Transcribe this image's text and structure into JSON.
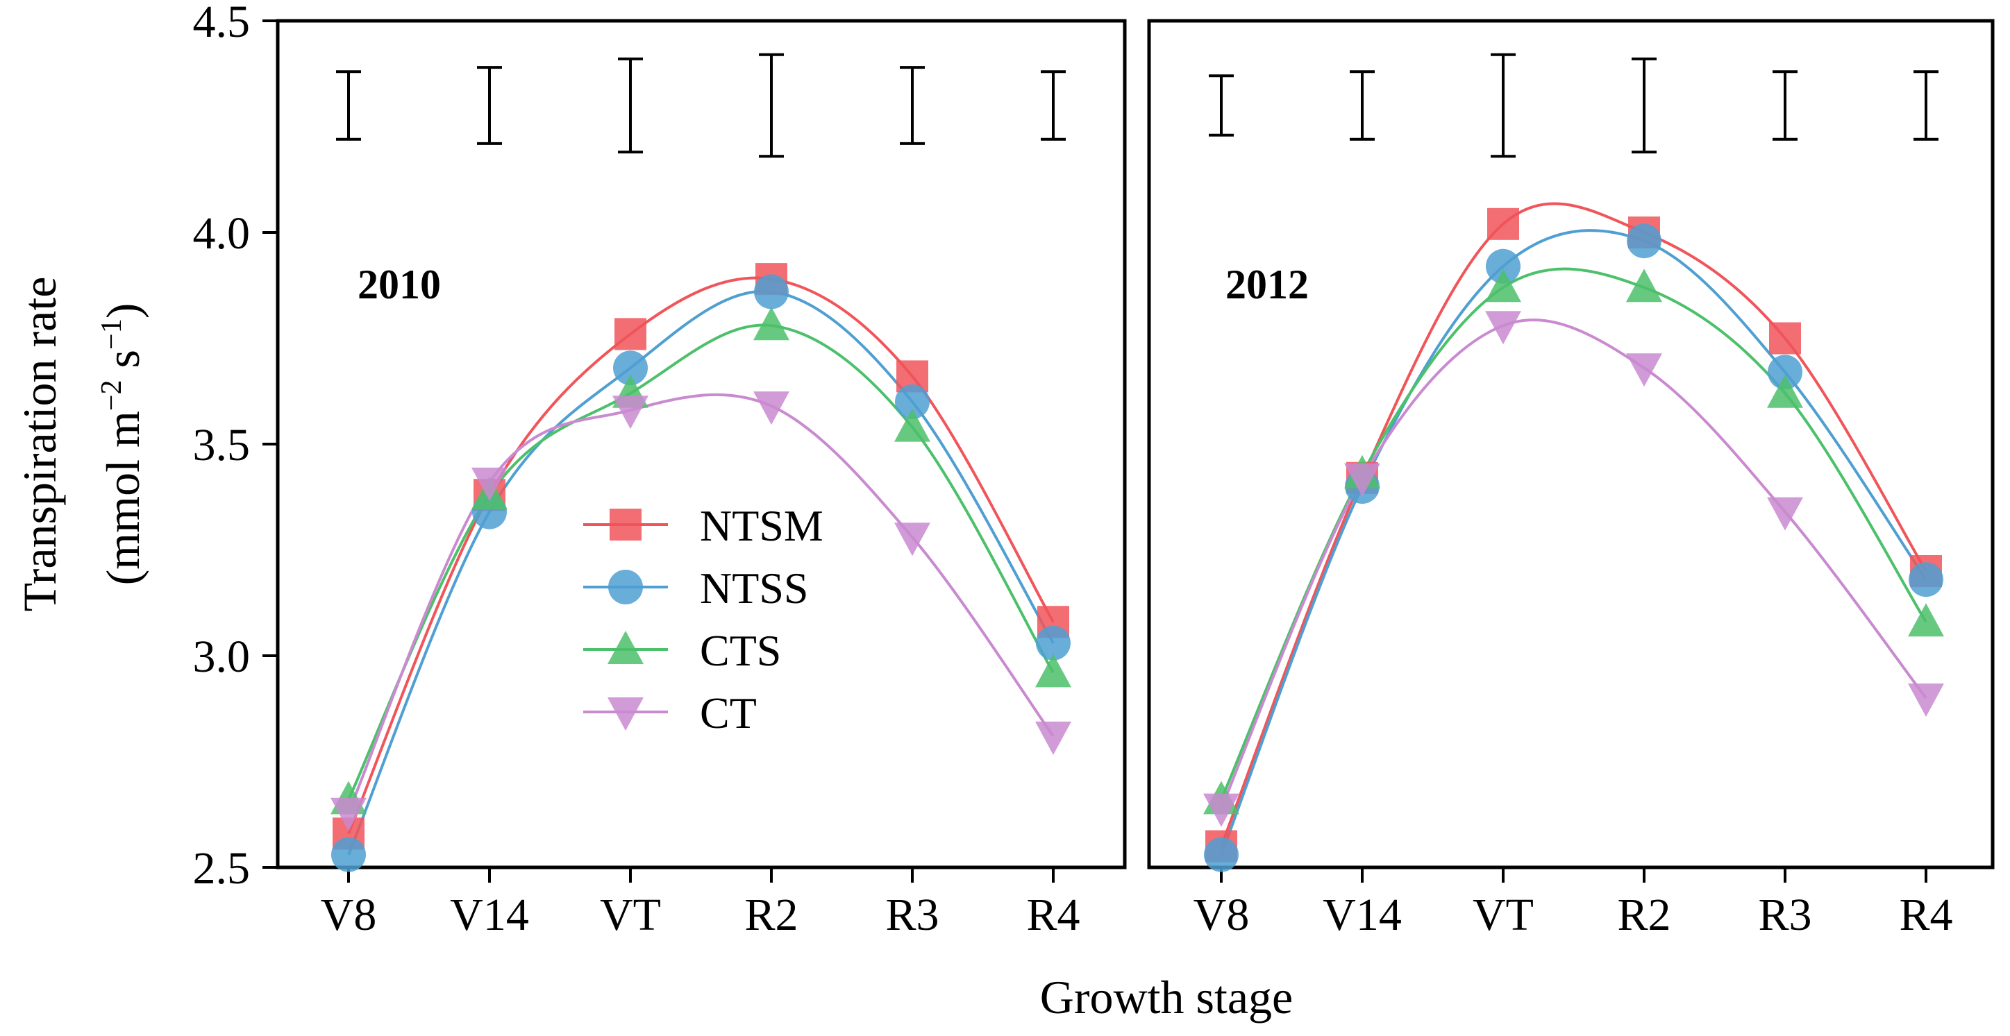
{
  "chart_data": {
    "type": "line",
    "xlabel": "Growth stage",
    "ylabel_line1": "Transpiration rate",
    "ylabel_line2": "(mmol m",
    "ylabel_exp1": "−2",
    "ylabel_mid": " s",
    "ylabel_exp2": "−1",
    "ylabel_end": ")",
    "ylim": [
      2.5,
      4.5
    ],
    "yticks": [
      "2.5",
      "3.0",
      "3.5",
      "4.0",
      "4.5"
    ],
    "categories": [
      "V8",
      "V14",
      "VT",
      "R2",
      "R3",
      "R4"
    ],
    "legend": [
      {
        "name": "NTSM",
        "color": "#f0555a",
        "marker": "square"
      },
      {
        "name": "NTSS",
        "color": "#4f9fd2",
        "marker": "circle"
      },
      {
        "name": "CTS",
        "color": "#4cc06a",
        "marker": "triangle-up"
      },
      {
        "name": "CT",
        "color": "#c98ad0",
        "marker": "triangle-down"
      }
    ],
    "panels": [
      {
        "label": "2010",
        "series": [
          {
            "name": "NTSM",
            "values": [
              2.58,
              3.38,
              3.76,
              3.89,
              3.66,
              3.08
            ]
          },
          {
            "name": "NTSS",
            "values": [
              2.53,
              3.34,
              3.68,
              3.86,
              3.6,
              3.03
            ]
          },
          {
            "name": "CTS",
            "values": [
              2.66,
              3.38,
              3.62,
              3.78,
              3.54,
              2.96
            ]
          },
          {
            "name": "CT",
            "values": [
              2.63,
              3.41,
              3.58,
              3.59,
              3.28,
              2.81
            ]
          }
        ],
        "error_bars": [
          [
            4.22,
            4.38
          ],
          [
            4.21,
            4.39
          ],
          [
            4.19,
            4.41
          ],
          [
            4.18,
            4.42
          ],
          [
            4.21,
            4.39
          ],
          [
            4.22,
            4.38
          ]
        ]
      },
      {
        "label": "2012",
        "series": [
          {
            "name": "NTSM",
            "values": [
              2.55,
              3.42,
              4.02,
              4.0,
              3.75,
              3.2
            ]
          },
          {
            "name": "NTSS",
            "values": [
              2.53,
              3.4,
              3.92,
              3.98,
              3.67,
              3.18
            ]
          },
          {
            "name": "CTS",
            "values": [
              2.66,
              3.43,
              3.87,
              3.87,
              3.62,
              3.08
            ]
          },
          {
            "name": "CT",
            "values": [
              2.64,
              3.42,
              3.78,
              3.68,
              3.34,
              2.9
            ]
          }
        ],
        "error_bars": [
          [
            4.23,
            4.37
          ],
          [
            4.22,
            4.38
          ],
          [
            4.18,
            4.42
          ],
          [
            4.19,
            4.41
          ],
          [
            4.22,
            4.38
          ],
          [
            4.22,
            4.38
          ]
        ]
      }
    ]
  }
}
